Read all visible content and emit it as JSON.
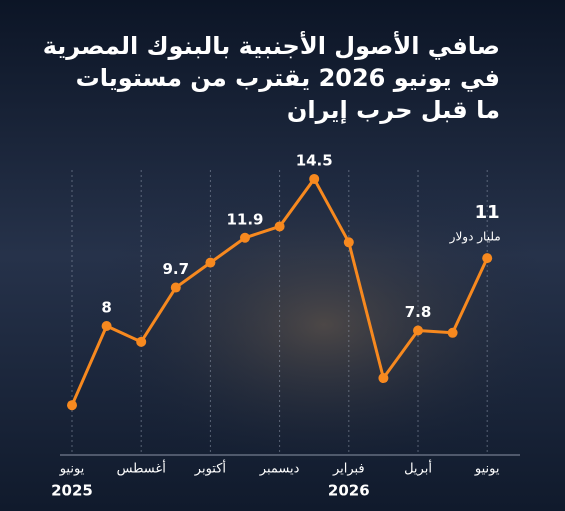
{
  "chart_data": {
    "type": "line",
    "title": [
      "صافي الأصول الأجنبية بالبنوك المصرية",
      "في يونيو 2026 يقترب من مستويات",
      "ما قبل حرب إيران"
    ],
    "categories": [
      "يونيو",
      null,
      "أغسطس",
      null,
      "أكتوبر",
      null,
      "ديسمبر",
      null,
      "فبراير",
      null,
      "أبريل",
      null,
      "يونيو"
    ],
    "year_labels": [
      "2025",
      null,
      null,
      null,
      null,
      null,
      null,
      null,
      "2026",
      null,
      null,
      null,
      null
    ],
    "series": [
      {
        "name": "صافي الأصول الأجنبية",
        "color": "#f7891f",
        "values": [
          4.5,
          8,
          7.3,
          9.7,
          10.8,
          11.9,
          12.4,
          14.5,
          11.7,
          5.7,
          7.8,
          7.7,
          11
        ],
        "value_labels": [
          null,
          "8",
          null,
          "9.7",
          null,
          "11.9",
          null,
          "14.5",
          null,
          null,
          "7.8",
          null,
          "11"
        ]
      }
    ],
    "unit_label": "مليار دولار",
    "ylim": [
      0,
      16
    ],
    "grid": true
  }
}
